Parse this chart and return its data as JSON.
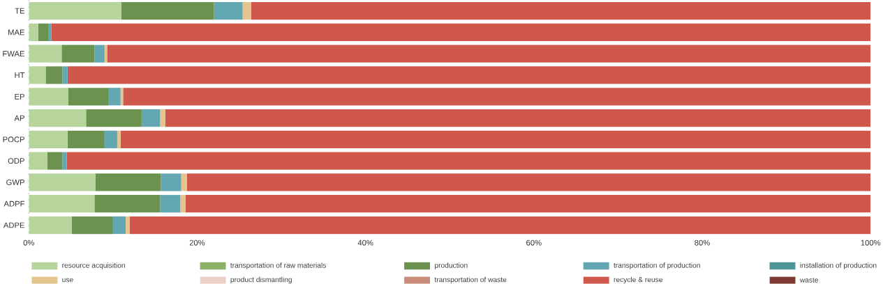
{
  "chart_data": {
    "type": "bar",
    "orientation": "horizontal",
    "stacked": true,
    "legend": "bottom",
    "categories": [
      "TE",
      "MAE",
      "FWAE",
      "HT",
      "EP",
      "AP",
      "POCP",
      "ODP",
      "GWP",
      "ADPF",
      "ADPE"
    ],
    "xlim": [
      0,
      100
    ],
    "xticks": [
      {
        "value": 0,
        "label": "0%"
      },
      {
        "value": 20,
        "label": "20%"
      },
      {
        "value": 40,
        "label": "40%"
      },
      {
        "value": 60,
        "label": "60%"
      },
      {
        "value": 80,
        "label": "80%"
      },
      {
        "value": 100,
        "label": "100%"
      }
    ],
    "series": [
      {
        "name": "resource acquisition",
        "color": "#b6d49b",
        "values": [
          11.0,
          1.1,
          3.9,
          2.0,
          4.7,
          6.8,
          4.6,
          2.2,
          7.9,
          7.8,
          5.1
        ]
      },
      {
        "name": "transportation of raw materials",
        "color": "#8db265",
        "values": [
          0,
          0,
          0,
          0,
          0,
          0,
          0,
          0,
          0,
          0,
          0
        ]
      },
      {
        "name": "production",
        "color": "#6b934f",
        "values": [
          11.0,
          1.2,
          3.9,
          2.0,
          4.8,
          6.6,
          4.4,
          1.8,
          7.8,
          7.8,
          4.9
        ]
      },
      {
        "name": "transportation of  production",
        "color": "#62a7b2",
        "values": [
          3.4,
          0.4,
          1.2,
          0.6,
          1.4,
          2.2,
          1.5,
          0.5,
          2.4,
          2.4,
          1.5
        ]
      },
      {
        "name": "installation of production",
        "color": "#4d9598",
        "values": [
          0,
          0,
          0,
          0,
          0,
          0,
          0,
          0,
          0,
          0,
          0
        ]
      },
      {
        "name": "use",
        "color": "#e5c48f",
        "values": [
          1.0,
          0,
          0.3,
          0,
          0.3,
          0.6,
          0.4,
          0,
          0.7,
          0.6,
          0.5
        ]
      },
      {
        "name": "product dismantling",
        "color": "#ecd0c6",
        "values": [
          0,
          0,
          0,
          0,
          0,
          0,
          0,
          0,
          0,
          0,
          0
        ]
      },
      {
        "name": "transportation of waste",
        "color": "#c98c78",
        "values": [
          0,
          0,
          0,
          0,
          0,
          0,
          0,
          0,
          0,
          0,
          0
        ]
      },
      {
        "name": "recycle & reuse",
        "color": "#d0574b",
        "values": [
          73.6,
          97.3,
          90.7,
          95.4,
          88.8,
          83.8,
          89.1,
          95.5,
          81.2,
          81.4,
          88.0
        ]
      },
      {
        "name": "waste",
        "color": "#7e3a30",
        "values": [
          0,
          0,
          0,
          0,
          0,
          0,
          0,
          0,
          0,
          0,
          0
        ]
      }
    ]
  }
}
